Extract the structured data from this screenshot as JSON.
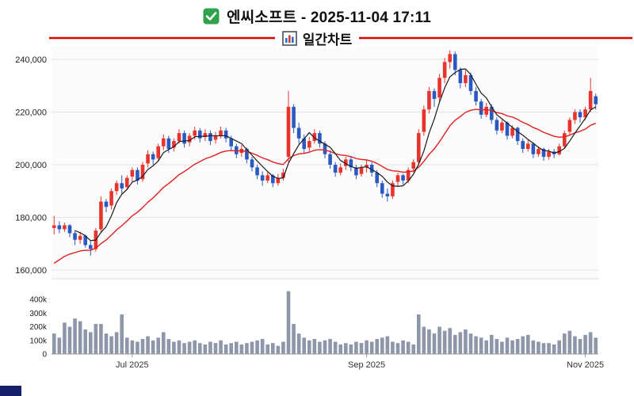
{
  "header": {
    "title": "엔씨소프트 - 2025-11-04 17:11",
    "subtitle": "일간차트"
  },
  "misc": {
    "corner_block_color": "#17216b"
  },
  "chart_data": {
    "type": "candlestick",
    "title": "엔씨소프트 - 2025-11-04 17:11",
    "subtitle": "일간차트",
    "legend_position": "none",
    "grid": "horizontal",
    "y_axis": {
      "side": "left",
      "ylim": [
        155000,
        246000
      ],
      "ticks": [
        160000,
        180000,
        200000,
        220000,
        240000
      ],
      "tick_labels": [
        "160,000",
        "180,000",
        "200,000",
        "220,000",
        "240,000"
      ]
    },
    "volume_axis": {
      "ylim": [
        0,
        460000
      ],
      "ticks": [
        0,
        100000,
        200000,
        300000,
        400000
      ],
      "tick_labels": [
        "0",
        "100k",
        "200k",
        "300k",
        "400k"
      ]
    },
    "x_axis": {
      "tick_labels": [
        "Jul 2025",
        "Sep 2025",
        "Nov 2025"
      ],
      "tick_indices": [
        15,
        60,
        102
      ]
    },
    "candles_format": [
      "open",
      "high",
      "low",
      "close",
      "volume"
    ],
    "candles": [
      [
        176000,
        180500,
        173500,
        177000,
        150000
      ],
      [
        177000,
        178500,
        174000,
        175500,
        120000
      ],
      [
        175500,
        178000,
        174500,
        177000,
        230000
      ],
      [
        177000,
        177500,
        172500,
        174000,
        200000
      ],
      [
        174000,
        175000,
        169500,
        171500,
        260000
      ],
      [
        171500,
        174500,
        170000,
        173000,
        240000
      ],
      [
        173000,
        173500,
        168500,
        169500,
        180000
      ],
      [
        169500,
        171000,
        165500,
        168000,
        160000
      ],
      [
        168000,
        176000,
        167000,
        175000,
        220000
      ],
      [
        175500,
        188000,
        174500,
        186000,
        220000
      ],
      [
        186000,
        187000,
        182000,
        184000,
        150000
      ],
      [
        184500,
        191000,
        183000,
        190000,
        130000
      ],
      [
        190000,
        194000,
        188500,
        193000,
        160000
      ],
      [
        193000,
        196000,
        189000,
        191000,
        290000
      ],
      [
        191500,
        196000,
        190500,
        195000,
        120000
      ],
      [
        195500,
        199000,
        193500,
        198000,
        100000
      ],
      [
        198000,
        199000,
        192500,
        194000,
        90000
      ],
      [
        194500,
        201000,
        193500,
        200000,
        110000
      ],
      [
        200500,
        205500,
        199000,
        204000,
        130000
      ],
      [
        204000,
        205000,
        200000,
        202000,
        100000
      ],
      [
        202500,
        208000,
        201500,
        207000,
        120000
      ],
      [
        207000,
        211500,
        205500,
        210000,
        160000
      ],
      [
        210000,
        211000,
        204500,
        206000,
        110000
      ],
      [
        206500,
        210000,
        205000,
        209000,
        90000
      ],
      [
        209000,
        213500,
        208000,
        212000,
        100000
      ],
      [
        212000,
        213000,
        206500,
        208000,
        80000
      ],
      [
        208500,
        212000,
        207000,
        211000,
        90000
      ],
      [
        211000,
        214500,
        209500,
        213000,
        100000
      ],
      [
        213000,
        214000,
        208500,
        210000,
        80000
      ],
      [
        210500,
        213500,
        209000,
        212000,
        70000
      ],
      [
        212000,
        213000,
        207500,
        209000,
        90000
      ],
      [
        209500,
        212500,
        208000,
        211000,
        80000
      ],
      [
        211000,
        214500,
        210000,
        213000,
        100000
      ],
      [
        213000,
        214000,
        208500,
        210000,
        70000
      ],
      [
        210000,
        211000,
        205500,
        207000,
        80000
      ],
      [
        207000,
        208000,
        202500,
        204000,
        90000
      ],
      [
        204500,
        207500,
        203000,
        206000,
        70000
      ],
      [
        206000,
        206500,
        200500,
        202000,
        80000
      ],
      [
        202000,
        203000,
        197500,
        199000,
        90000
      ],
      [
        199000,
        200000,
        194500,
        196000,
        100000
      ],
      [
        196000,
        197500,
        192000,
        194000,
        110000
      ],
      [
        194000,
        197000,
        193000,
        196000,
        70000
      ],
      [
        196000,
        196500,
        191500,
        193000,
        80000
      ],
      [
        193000,
        196500,
        192000,
        195000,
        60000
      ],
      [
        195000,
        198500,
        194000,
        197000,
        90000
      ],
      [
        203000,
        228000,
        201000,
        222000,
        460000
      ],
      [
        222000,
        223000,
        212000,
        214000,
        220000
      ],
      [
        214000,
        216000,
        208000,
        210000,
        150000
      ],
      [
        210000,
        211500,
        204500,
        206000,
        120000
      ],
      [
        206500,
        210500,
        205000,
        209000,
        100000
      ],
      [
        209000,
        213500,
        208000,
        212000,
        110000
      ],
      [
        212000,
        213000,
        206500,
        208000,
        90000
      ],
      [
        208000,
        209000,
        202500,
        204000,
        100000
      ],
      [
        204000,
        205500,
        198500,
        200000,
        110000
      ],
      [
        200000,
        201000,
        195500,
        197000,
        90000
      ],
      [
        197000,
        200500,
        196000,
        199000,
        70000
      ],
      [
        199500,
        203000,
        198000,
        202000,
        80000
      ],
      [
        202000,
        203000,
        197500,
        199000,
        70000
      ],
      [
        199000,
        200000,
        194500,
        196000,
        90000
      ],
      [
        196500,
        200000,
        195500,
        199000,
        80000
      ],
      [
        199000,
        202000,
        197000,
        200000,
        100000
      ],
      [
        200000,
        201000,
        195500,
        197000,
        90000
      ],
      [
        197000,
        198000,
        191500,
        193000,
        110000
      ],
      [
        193000,
        194000,
        187500,
        189000,
        120000
      ],
      [
        189000,
        191000,
        186000,
        188000,
        130000
      ],
      [
        188000,
        194000,
        187000,
        193000,
        90000
      ],
      [
        193500,
        197000,
        192000,
        196000,
        80000
      ],
      [
        196000,
        196500,
        192500,
        194000,
        100000
      ],
      [
        194000,
        199000,
        193000,
        198000,
        90000
      ],
      [
        198500,
        202000,
        197000,
        201000,
        70000
      ],
      [
        201000,
        213500,
        200000,
        212000,
        290000
      ],
      [
        212500,
        222500,
        211000,
        221000,
        200000
      ],
      [
        221000,
        229500,
        219500,
        228000,
        180000
      ],
      [
        228000,
        229000,
        222000,
        225000,
        150000
      ],
      [
        225500,
        234500,
        224000,
        233000,
        200000
      ],
      [
        233000,
        240500,
        231000,
        239000,
        170000
      ],
      [
        239000,
        243500,
        236500,
        242000,
        190000
      ],
      [
        242000,
        243000,
        234000,
        236000,
        140000
      ],
      [
        236000,
        237000,
        229000,
        231000,
        160000
      ],
      [
        231000,
        236000,
        229500,
        234000,
        180000
      ],
      [
        234000,
        235000,
        226500,
        228000,
        150000
      ],
      [
        228000,
        229500,
        222500,
        224000,
        130000
      ],
      [
        224000,
        225000,
        217500,
        219000,
        120000
      ],
      [
        219000,
        223500,
        218000,
        222000,
        100000
      ],
      [
        222000,
        223000,
        215500,
        217000,
        140000
      ],
      [
        217000,
        218000,
        211500,
        213000,
        110000
      ],
      [
        213000,
        217000,
        212000,
        216000,
        90000
      ],
      [
        216000,
        216500,
        209500,
        211000,
        120000
      ],
      [
        211000,
        215000,
        210000,
        214000,
        100000
      ],
      [
        214000,
        214500,
        207500,
        209000,
        110000
      ],
      [
        209000,
        210000,
        204500,
        206000,
        130000
      ],
      [
        206000,
        209500,
        205000,
        208000,
        140000
      ],
      [
        208000,
        208500,
        202500,
        204000,
        100000
      ],
      [
        204000,
        207000,
        203000,
        206000,
        90000
      ],
      [
        206000,
        206500,
        201500,
        203000,
        80000
      ],
      [
        203000,
        206000,
        202000,
        205000,
        80000
      ],
      [
        205000,
        206000,
        202500,
        204000,
        70000
      ],
      [
        204000,
        208000,
        203500,
        207000,
        100000
      ],
      [
        207000,
        213000,
        206000,
        212000,
        150000
      ],
      [
        212500,
        218000,
        211500,
        217000,
        170000
      ],
      [
        217000,
        221000,
        215500,
        220000,
        130000
      ],
      [
        220000,
        221000,
        216000,
        218000,
        110000
      ],
      [
        218000,
        222000,
        217000,
        221000,
        140000
      ],
      [
        221000,
        233000,
        220000,
        228000,
        160000
      ],
      [
        226000,
        227000,
        221000,
        223000,
        120000
      ]
    ],
    "ma_short": {
      "type": "sma",
      "period": 5,
      "color": "#1a1a1a"
    },
    "ma_long": {
      "type": "ema",
      "seed": 161000,
      "alpha": 0.1,
      "color": "#e02020"
    },
    "colors": {
      "up": "#e8342c",
      "down": "#2b59c3",
      "volume": "#8e96aa",
      "grid": "#e3e3e3",
      "plot_bg": "#fbfbfb",
      "axis_text": "#222222",
      "baseline": "#999999",
      "top_line": "#dc0000"
    }
  }
}
